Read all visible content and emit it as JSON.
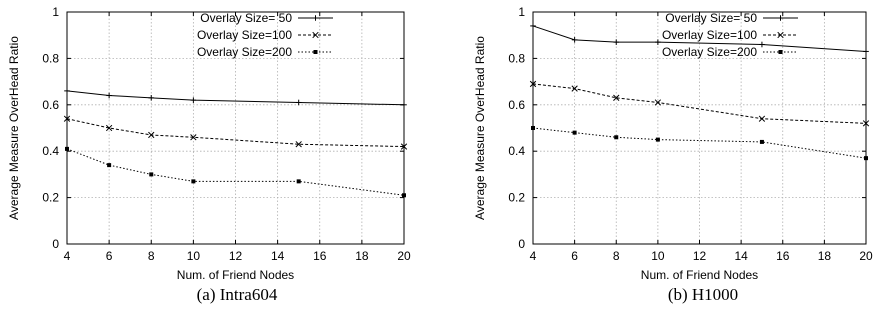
{
  "chart_data": [
    {
      "type": "line",
      "caption": "(a) Intra604",
      "xlabel": "Num. of Friend Nodes",
      "ylabel": "Average Measure OverHead Ratio",
      "xlim": [
        4,
        20
      ],
      "ylim": [
        0,
        1
      ],
      "xticks": [
        "4",
        "6",
        "8",
        "10",
        "12",
        "14",
        "16",
        "18",
        "20"
      ],
      "yticks": [
        "0",
        "0.2",
        "0.4",
        "0.6",
        "0.8",
        "1"
      ],
      "grid": true,
      "legend_position": "top-right",
      "x": [
        4,
        6,
        8,
        10,
        15,
        20
      ],
      "series": [
        {
          "name": "Overlay Size= 50",
          "values": [
            0.66,
            0.64,
            0.63,
            0.62,
            0.61,
            0.6
          ],
          "marker": "plus",
          "dash": "solid"
        },
        {
          "name": "Overlay Size=100",
          "values": [
            0.54,
            0.5,
            0.47,
            0.46,
            0.43,
            0.42
          ],
          "marker": "cross",
          "dash": "dashed"
        },
        {
          "name": "Overlay Size=200",
          "values": [
            0.41,
            0.34,
            0.3,
            0.27,
            0.27,
            0.21
          ],
          "marker": "square",
          "dash": "dotted"
        }
      ]
    },
    {
      "type": "line",
      "caption": "(b) H1000",
      "xlabel": "Num. of Friend Nodes",
      "ylabel": "Average Measure OverHead Ratio",
      "xlim": [
        4,
        20
      ],
      "ylim": [
        0,
        1
      ],
      "xticks": [
        "4",
        "6",
        "8",
        "10",
        "12",
        "14",
        "16",
        "18",
        "20"
      ],
      "yticks": [
        "0",
        "0.2",
        "0.4",
        "0.6",
        "0.8",
        "1"
      ],
      "grid": true,
      "legend_position": "top-right",
      "x": [
        4,
        6,
        8,
        10,
        15,
        20
      ],
      "series": [
        {
          "name": "Overlay Size= 50",
          "values": [
            0.94,
            0.88,
            0.87,
            0.87,
            0.86,
            0.83
          ],
          "marker": "plus",
          "dash": "solid"
        },
        {
          "name": "Overlay Size=100",
          "values": [
            0.69,
            0.67,
            0.63,
            0.61,
            0.54,
            0.52
          ],
          "marker": "cross",
          "dash": "dashed"
        },
        {
          "name": "Overlay Size=200",
          "values": [
            0.5,
            0.48,
            0.46,
            0.45,
            0.44,
            0.37
          ],
          "marker": "square",
          "dash": "dotted"
        }
      ]
    }
  ]
}
